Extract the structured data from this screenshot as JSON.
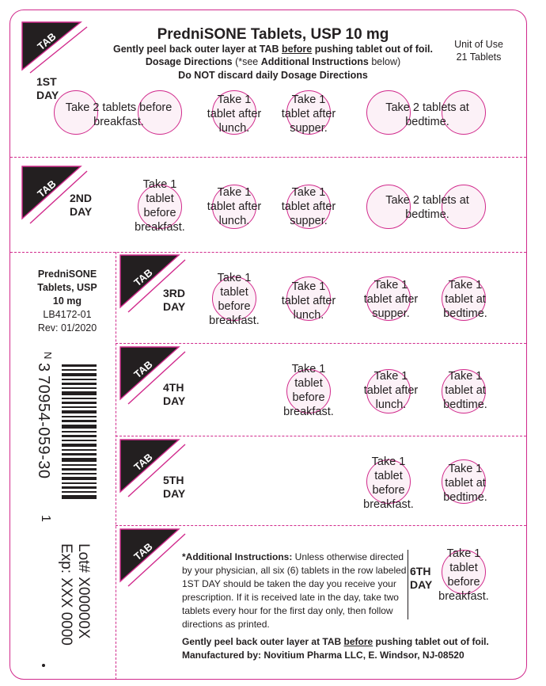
{
  "header": {
    "title": "PredniSONE Tablets, USP 10 mg",
    "line1_pre": "Gently peel back outer layer at TAB ",
    "line1_underline": "before",
    "line1_post": " pushing tablet out of foil.",
    "line2_bold": "Dosage Directions",
    "line2_rest": " (*see ",
    "line2_bold2": "Additional Instructions",
    "line2_end": " below)",
    "line3": "Do NOT discard daily Dosage Directions"
  },
  "unit": {
    "line1": "Unit of Use",
    "line2": "21 Tablets"
  },
  "tab_label": "TAB",
  "days": {
    "d1": "1ST\nDAY",
    "d2": "2ND\nDAY",
    "d3": "3RD\nDAY",
    "d4": "4TH\nDAY",
    "d5": "5TH\nDAY",
    "d6": "6TH\nDAY"
  },
  "doses": {
    "d1_a": "Take 2 tablets before\nbreakfast.",
    "d1_b": "Take 1\ntablet after\nlunch.",
    "d1_c": "Take 1\ntablet after\nsupper.",
    "d1_d": "Take 2 tablets at\nbedtime.",
    "d2_a": "Take 1\ntablet\nbefore\nbreakfast.",
    "d2_b": "Take 1\ntablet after\nlunch.",
    "d2_c": "Take 1\ntablet after\nsupper.",
    "d2_d": "Take 2 tablets at\nbedtime.",
    "d3_a": "Take 1\ntablet\nbefore\nbreakfast.",
    "d3_b": "Take 1\ntablet after\nlunch.",
    "d3_c": "Take 1\ntablet after\nsupper.",
    "d3_d": "Take 1\ntablet at\nbedtime.",
    "d4_a": "Take 1\ntablet\nbefore\nbreakfast.",
    "d4_b": "Take 1\ntablet after\nlunch.",
    "d4_c": "Take 1\ntablet at\nbedtime.",
    "d5_a": "Take 1\ntablet\nbefore\nbreakfast.",
    "d5_b": "Take 1\ntablet at\nbedtime.",
    "d6_a": "Take 1\ntablet\nbefore\nbreakfast."
  },
  "side": {
    "name1": "PredniSONE",
    "name2": "Tablets, USP",
    "strength": "10 mg",
    "code": "LB4172-01",
    "rev": "Rev: 01/2020"
  },
  "barcode": {
    "lead": "N",
    "number1": "3",
    "number2": "70954-059-30",
    "check": "1"
  },
  "lot": "Lot# X00000X",
  "exp": "Exp: XXX 0000",
  "additional": {
    "label": "*Additional Instructions:",
    "text": " Unless otherwise directed by your physician, all six (6) tablets in the row labeled 1ST DAY should be taken the day you receive your prescription.   If it is received late in the day, take two tablets every hour for the first day only, then follow directions as printed."
  },
  "footer": {
    "line1_pre": "Gently peel back outer layer at TAB ",
    "line1_underline": "before",
    "line1_post": " pushing tablet out of foil.",
    "line2": "Manufactured by: Novitium Pharma LLC, E. Windsor, NJ-08520"
  },
  "colors": {
    "accent": "#d12a8c",
    "ink": "#231f20"
  }
}
